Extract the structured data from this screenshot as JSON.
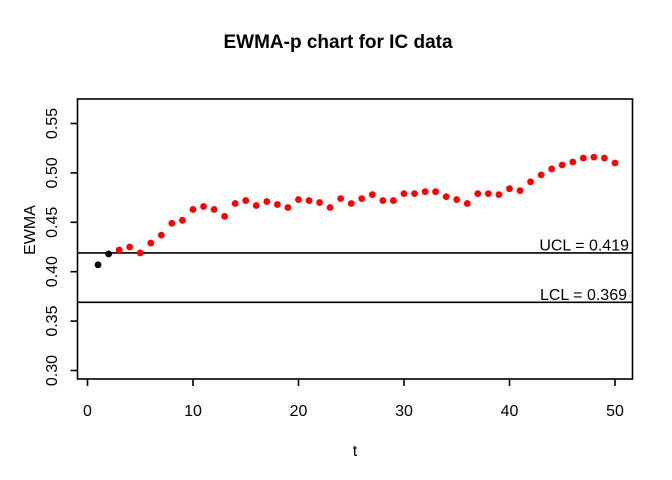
{
  "chart_data": {
    "type": "scatter",
    "title": "EWMA-p chart for IC data",
    "xlabel": "t",
    "ylabel": "EWMA",
    "x_ticks": [
      0,
      10,
      20,
      30,
      40,
      50
    ],
    "y_ticks": [
      "0.30",
      "0.35",
      "0.40",
      "0.45",
      "0.50",
      "0.55"
    ],
    "xlim": [
      -1,
      52
    ],
    "ylim": [
      0.29,
      0.575
    ],
    "grid": false,
    "legend": null,
    "ucl": {
      "label": "UCL = 0.419",
      "value": 0.419
    },
    "lcl": {
      "label": "LCL = 0.369",
      "value": 0.369
    },
    "x": [
      1,
      2,
      3,
      4,
      5,
      6,
      7,
      8,
      9,
      10,
      11,
      12,
      13,
      14,
      15,
      16,
      17,
      18,
      19,
      20,
      21,
      22,
      23,
      24,
      25,
      26,
      27,
      28,
      29,
      30,
      31,
      32,
      33,
      34,
      35,
      36,
      37,
      38,
      39,
      40,
      41,
      42,
      43,
      44,
      45,
      46,
      47,
      48,
      49,
      50
    ],
    "values": [
      0.407,
      0.418,
      0.422,
      0.425,
      0.419,
      0.429,
      0.437,
      0.449,
      0.452,
      0.463,
      0.466,
      0.463,
      0.456,
      0.469,
      0.472,
      0.467,
      0.471,
      0.468,
      0.465,
      0.473,
      0.472,
      0.47,
      0.465,
      0.474,
      0.469,
      0.474,
      0.478,
      0.472,
      0.472,
      0.479,
      0.479,
      0.481,
      0.481,
      0.476,
      0.473,
      0.469,
      0.479,
      0.479,
      0.478,
      0.484,
      0.482,
      0.491,
      0.498,
      0.504,
      0.508,
      0.511,
      0.515,
      0.516,
      0.515,
      0.51
    ],
    "black_points": [
      1,
      2
    ],
    "point_color": "#ff0000",
    "start_point_color": "#000000",
    "line_color": "#000000"
  }
}
